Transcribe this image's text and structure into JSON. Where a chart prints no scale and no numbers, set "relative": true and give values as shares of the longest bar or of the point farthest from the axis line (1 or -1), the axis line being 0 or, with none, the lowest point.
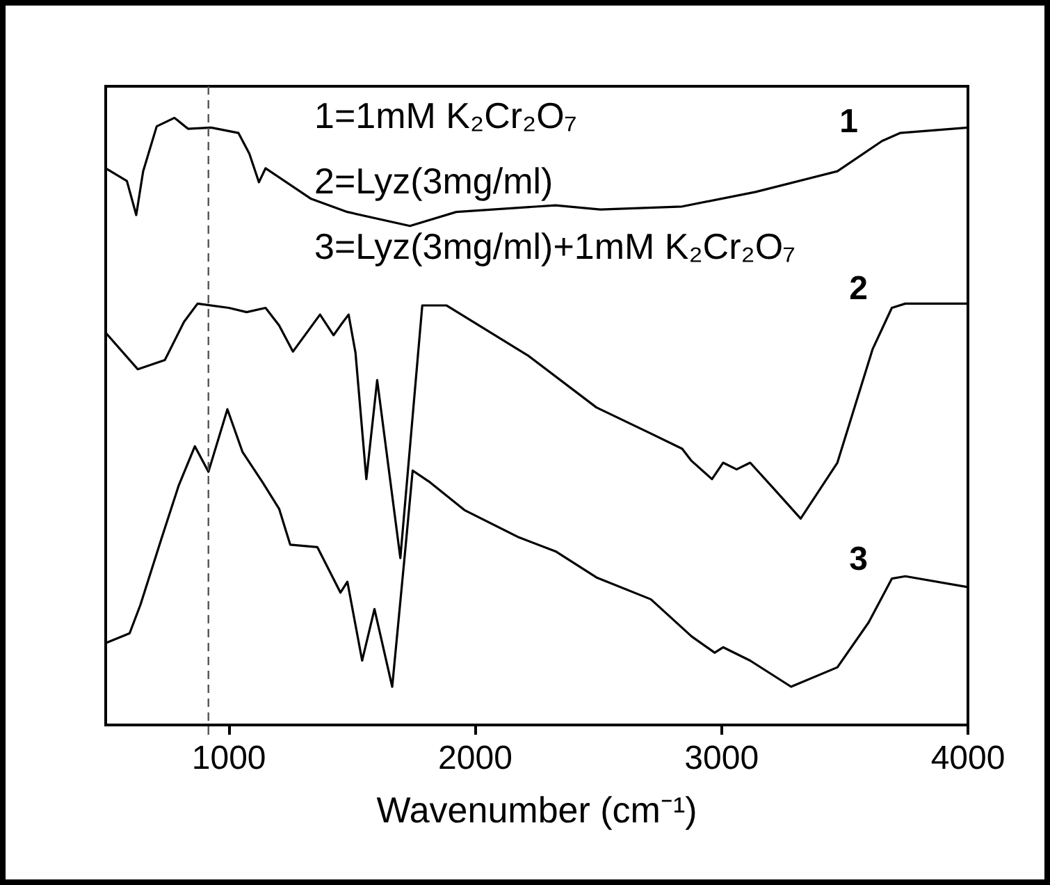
{
  "chart_data": {
    "type": "line",
    "relative": true,
    "xlabel": "Wavenumber (cm⁻¹)",
    "xlim": [
      500,
      4000
    ],
    "xticks": [
      1000,
      2000,
      3000,
      4000
    ],
    "grid": false,
    "marker": "none",
    "line_style": "solid",
    "annotations": [
      "1=1mM K₂Cr₂O₇",
      "2=Lyz(3mg/ml)",
      "3=Lyz(3mg/ml)+1mM K₂Cr₂O₇"
    ],
    "ref_lines": [
      {
        "axis": "x",
        "value": 917,
        "color": "#555555",
        "line_style": "dashed"
      }
    ],
    "series": [
      {
        "name": "1",
        "color": "#000000",
        "x": [
          500,
          586,
          624,
          652,
          707,
          779,
          834,
          928,
          1039,
          1083,
          1122,
          1149,
          1332,
          1481,
          1735,
          1923,
          2326,
          2508,
          2840,
          3138,
          3470,
          3652,
          3724,
          4000
        ],
        "values": [
          0.917,
          0.896,
          0.84,
          0.912,
          0.986,
          1,
          0.982,
          0.984,
          0.975,
          0.941,
          0.894,
          0.917,
          0.867,
          0.845,
          0.822,
          0.845,
          0.856,
          0.849,
          0.854,
          0.878,
          0.912,
          0.962,
          0.975,
          0.984
        ]
      },
      {
        "name": "2",
        "color": "#000000",
        "x": [
          500,
          630,
          740,
          818,
          873,
          1000,
          1072,
          1149,
          1204,
          1260,
          1370,
          1425,
          1453,
          1486,
          1514,
          1558,
          1602,
          1696,
          1785,
          1884,
          2216,
          2492,
          2713,
          2840,
          2878,
          2961,
          3006,
          3061,
          3116,
          3210,
          3321,
          3470,
          3613,
          3691,
          3746,
          4000
        ],
        "values": [
          0.646,
          0.586,
          0.601,
          0.664,
          0.694,
          0.687,
          0.68,
          0.687,
          0.658,
          0.615,
          0.676,
          0.642,
          0.658,
          0.676,
          0.613,
          0.405,
          0.568,
          0.275,
          0.691,
          0.691,
          0.608,
          0.523,
          0.48,
          0.455,
          0.435,
          0.405,
          0.432,
          0.421,
          0.432,
          0.39,
          0.34,
          0.432,
          0.619,
          0.687,
          0.694,
          0.694
        ]
      },
      {
        "name": "3",
        "color": "#000000",
        "x": [
          500,
          597,
          641,
          724,
          796,
          862,
          917,
          994,
          1055,
          1138,
          1204,
          1249,
          1359,
          1453,
          1481,
          1541,
          1591,
          1663,
          1718,
          1746,
          1812,
          1956,
          2177,
          2326,
          2492,
          2713,
          2878,
          2972,
          3006,
          3116,
          3282,
          3470,
          3597,
          3691,
          3746,
          4000
        ],
        "values": [
          0.135,
          0.151,
          0.198,
          0.304,
          0.394,
          0.459,
          0.417,
          0.52,
          0.45,
          0.399,
          0.356,
          0.297,
          0.293,
          0.218,
          0.236,
          0.106,
          0.191,
          0.063,
          0.297,
          0.419,
          0.401,
          0.354,
          0.309,
          0.286,
          0.243,
          0.207,
          0.146,
          0.119,
          0.128,
          0.106,
          0.063,
          0.095,
          0.169,
          0.241,
          0.245,
          0.227
        ]
      }
    ]
  }
}
